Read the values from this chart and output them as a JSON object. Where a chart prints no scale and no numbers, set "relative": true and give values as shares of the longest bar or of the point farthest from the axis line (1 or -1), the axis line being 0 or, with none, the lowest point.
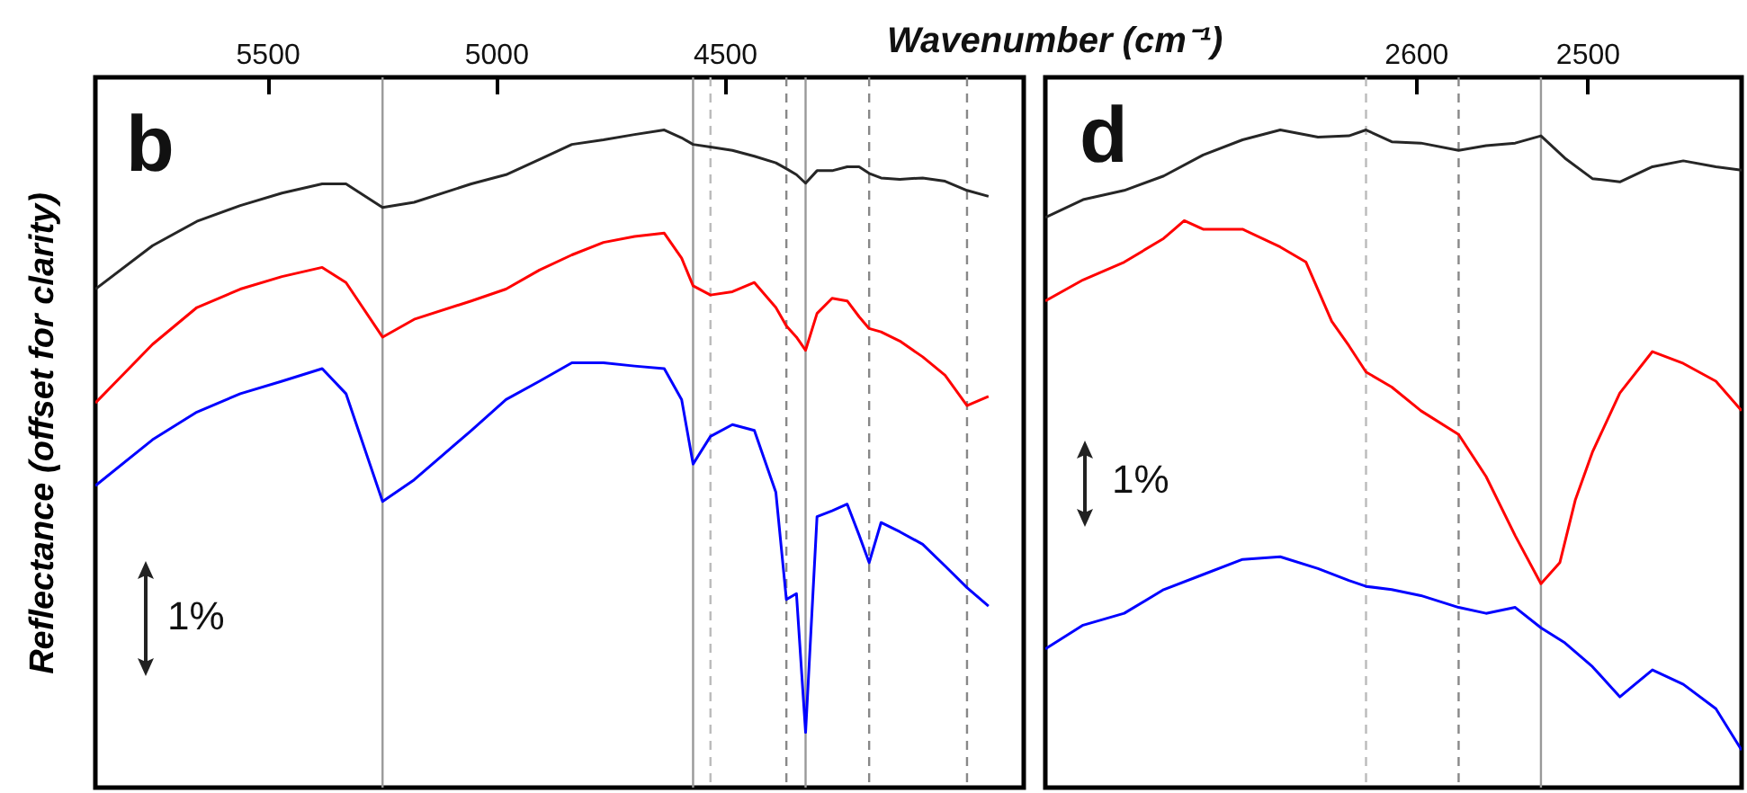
{
  "chart_data": [
    {
      "type": "line",
      "relative": true,
      "xlabel": "Wavenumber (cm⁻¹)",
      "ylabel": "Reflectance (offset for clarity)",
      "annotations": [
        "b",
        "1%"
      ],
      "xlim": [
        5876,
        3846
      ],
      "xticks": [
        5500,
        5000,
        4500
      ],
      "x": [
        5876,
        5751,
        5654,
        5559,
        5468,
        5380,
        5328,
        5248,
        5179,
        5054,
        4978,
        4905,
        4834,
        4765,
        4697,
        4632,
        4594,
        4569,
        4531,
        4483,
        4435,
        4388,
        4365,
        4343,
        4323,
        4298,
        4265,
        4232,
        4206,
        4184,
        4158,
        4117,
        4067,
        4018,
        3970,
        3923
      ],
      "series": [
        {
          "color": "#262626",
          "values": [
            0.758,
            0.824,
            0.861,
            0.885,
            0.904,
            0.918,
            0.918,
            0.882,
            0.89,
            0.918,
            0.932,
            0.955,
            0.978,
            0.985,
            0.993,
            1.0,
            0.988,
            0.978,
            0.974,
            0.969,
            0.96,
            0.95,
            0.941,
            0.932,
            0.919,
            0.938,
            0.938,
            0.944,
            0.944,
            0.934,
            0.927,
            0.925,
            0.927,
            0.922,
            0.908,
            0.899
          ]
        },
        {
          "color": "#ff0000",
          "values": [
            0.585,
            0.674,
            0.73,
            0.758,
            0.777,
            0.791,
            0.768,
            0.685,
            0.712,
            0.74,
            0.758,
            0.787,
            0.81,
            0.829,
            0.838,
            0.843,
            0.805,
            0.763,
            0.749,
            0.754,
            0.768,
            0.73,
            0.702,
            0.685,
            0.665,
            0.721,
            0.744,
            0.74,
            0.716,
            0.698,
            0.693,
            0.679,
            0.655,
            0.627,
            0.581,
            0.595
          ]
        },
        {
          "color": "#0000ff",
          "values": [
            0.459,
            0.529,
            0.571,
            0.599,
            0.618,
            0.637,
            0.599,
            0.435,
            0.468,
            0.543,
            0.59,
            0.618,
            0.646,
            0.646,
            0.641,
            0.637,
            0.59,
            0.492,
            0.534,
            0.552,
            0.543,
            0.449,
            0.286,
            0.295,
            0.084,
            0.412,
            0.421,
            0.431,
            0.384,
            0.342,
            0.403,
            0.389,
            0.37,
            0.337,
            0.304,
            0.276
          ]
        }
      ],
      "ref_lines": [
        {
          "axis": "x",
          "value": 5248,
          "color": "#999999",
          "line_style": "solid"
        },
        {
          "axis": "x",
          "value": 4569,
          "color": "#999999",
          "line_style": "solid"
        },
        {
          "axis": "x",
          "value": 4323,
          "color": "#999999",
          "line_style": "solid"
        },
        {
          "axis": "x",
          "value": 4531,
          "color": "#bbbbbb",
          "line_style": "dashed"
        },
        {
          "axis": "x",
          "value": 4365,
          "color": "#888888",
          "line_style": "dashed"
        },
        {
          "axis": "x",
          "value": 4184,
          "color": "#888888",
          "line_style": "dashed"
        },
        {
          "axis": "x",
          "value": 3970,
          "color": "#888888",
          "line_style": "dashed"
        }
      ]
    },
    {
      "type": "line",
      "relative": true,
      "annotations": [
        "d",
        "1%"
      ],
      "xlim": [
        2816,
        2410
      ],
      "xticks": [
        2600,
        2500
      ],
      "series": [
        {
          "color": "#262626",
          "x": [
            2816,
            2794,
            2770,
            2747,
            2724,
            2701,
            2679,
            2657,
            2639,
            2629,
            2614,
            2597,
            2575,
            2559,
            2542,
            2527,
            2513,
            2497,
            2481,
            2462,
            2444,
            2425,
            2410
          ],
          "values": [
            0.867,
            0.894,
            0.908,
            0.93,
            0.962,
            0.985,
            1.0,
            0.989,
            0.991,
            1.0,
            0.982,
            0.98,
            0.969,
            0.976,
            0.98,
            0.991,
            0.957,
            0.926,
            0.921,
            0.944,
            0.953,
            0.944,
            0.939
          ]
        },
        {
          "color": "#ff0000",
          "x": [
            2816,
            2794,
            2770,
            2747,
            2735,
            2724,
            2701,
            2679,
            2664,
            2649,
            2639,
            2629,
            2614,
            2597,
            2575,
            2559,
            2542,
            2527,
            2516,
            2507,
            2497,
            2481,
            2462,
            2444,
            2425,
            2410
          ],
          "values": [
            0.74,
            0.772,
            0.799,
            0.835,
            0.862,
            0.849,
            0.849,
            0.822,
            0.799,
            0.709,
            0.672,
            0.632,
            0.609,
            0.573,
            0.537,
            0.473,
            0.383,
            0.31,
            0.342,
            0.437,
            0.51,
            0.6,
            0.663,
            0.645,
            0.618,
            0.573
          ]
        },
        {
          "color": "#0000ff",
          "x": [
            2816,
            2794,
            2770,
            2747,
            2724,
            2701,
            2679,
            2657,
            2639,
            2629,
            2614,
            2597,
            2575,
            2559,
            2542,
            2527,
            2513,
            2497,
            2481,
            2462,
            2444,
            2425,
            2410
          ],
          "values": [
            0.211,
            0.247,
            0.265,
            0.301,
            0.324,
            0.347,
            0.351,
            0.333,
            0.315,
            0.306,
            0.301,
            0.292,
            0.274,
            0.265,
            0.274,
            0.243,
            0.22,
            0.184,
            0.138,
            0.179,
            0.157,
            0.12,
            0.057
          ]
        }
      ],
      "ref_lines": [
        {
          "axis": "x",
          "value": 2629,
          "color": "#bbbbbb",
          "line_style": "dashed"
        },
        {
          "axis": "x",
          "value": 2575,
          "color": "#888888",
          "line_style": "dashed"
        },
        {
          "axis": "x",
          "value": 2527,
          "color": "#999999",
          "line_style": "solid"
        }
      ]
    }
  ]
}
